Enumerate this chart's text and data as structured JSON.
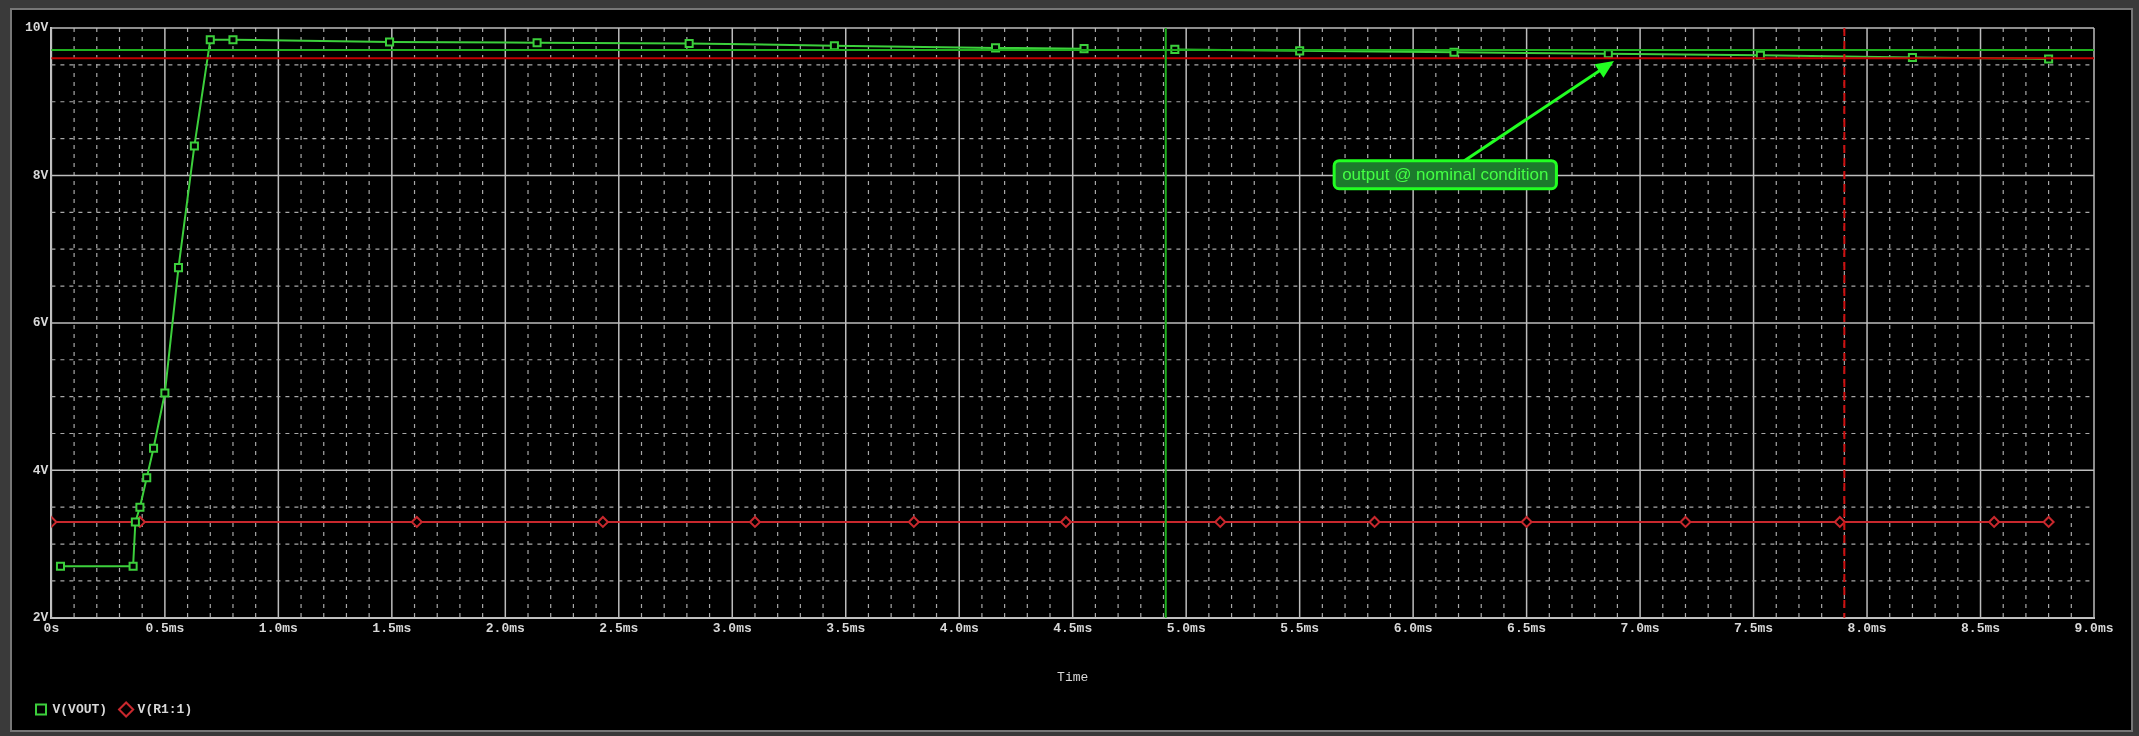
{
  "chart_data": {
    "type": "line",
    "xlabel": "Time",
    "legend": "bottom left",
    "grid": true,
    "line_style": "solid",
    "xlim": [
      0,
      9
    ],
    "ylim": [
      2,
      10
    ],
    "xticks": [
      {
        "value": 0,
        "label": "0s"
      },
      {
        "value": 0.1,
        "label": null
      },
      {
        "value": 0.2,
        "label": null
      },
      {
        "value": 0.3,
        "label": null
      },
      {
        "value": 0.4,
        "label": null
      },
      {
        "value": 0.5,
        "label": "0.5ms"
      },
      {
        "value": 0.6,
        "label": null
      },
      {
        "value": 0.7,
        "label": null
      },
      {
        "value": 0.8,
        "label": null
      },
      {
        "value": 0.9,
        "label": null
      },
      {
        "value": 1,
        "label": "1.0ms"
      },
      {
        "value": 1.1,
        "label": null
      },
      {
        "value": 1.2,
        "label": null
      },
      {
        "value": 1.3,
        "label": null
      },
      {
        "value": 1.4,
        "label": null
      },
      {
        "value": 1.5,
        "label": "1.5ms"
      },
      {
        "value": 1.6,
        "label": null
      },
      {
        "value": 1.7,
        "label": null
      },
      {
        "value": 1.8,
        "label": null
      },
      {
        "value": 1.9,
        "label": null
      },
      {
        "value": 2,
        "label": "2.0ms"
      },
      {
        "value": 2.1,
        "label": null
      },
      {
        "value": 2.2,
        "label": null
      },
      {
        "value": 2.3,
        "label": null
      },
      {
        "value": 2.4,
        "label": null
      },
      {
        "value": 2.5,
        "label": "2.5ms"
      },
      {
        "value": 2.6,
        "label": null
      },
      {
        "value": 2.7,
        "label": null
      },
      {
        "value": 2.8,
        "label": null
      },
      {
        "value": 2.9,
        "label": null
      },
      {
        "value": 3,
        "label": "3.0ms"
      },
      {
        "value": 3.1,
        "label": null
      },
      {
        "value": 3.2,
        "label": null
      },
      {
        "value": 3.3,
        "label": null
      },
      {
        "value": 3.4,
        "label": null
      },
      {
        "value": 3.5,
        "label": "3.5ms"
      },
      {
        "value": 3.6,
        "label": null
      },
      {
        "value": 3.7,
        "label": null
      },
      {
        "value": 3.8,
        "label": null
      },
      {
        "value": 3.9,
        "label": null
      },
      {
        "value": 4,
        "label": "4.0ms"
      },
      {
        "value": 4.1,
        "label": null
      },
      {
        "value": 4.2,
        "label": null
      },
      {
        "value": 4.3,
        "label": null
      },
      {
        "value": 4.4,
        "label": null
      },
      {
        "value": 4.5,
        "label": "4.5ms"
      },
      {
        "value": 4.6,
        "label": null
      },
      {
        "value": 4.7,
        "label": null
      },
      {
        "value": 4.8,
        "label": null
      },
      {
        "value": 4.9,
        "label": null
      },
      {
        "value": 5,
        "label": "5.0ms"
      },
      {
        "value": 5.1,
        "label": null
      },
      {
        "value": 5.2,
        "label": null
      },
      {
        "value": 5.3,
        "label": null
      },
      {
        "value": 5.4,
        "label": null
      },
      {
        "value": 5.5,
        "label": "5.5ms"
      },
      {
        "value": 5.6,
        "label": null
      },
      {
        "value": 5.7,
        "label": null
      },
      {
        "value": 5.8,
        "label": null
      },
      {
        "value": 5.9,
        "label": null
      },
      {
        "value": 6,
        "label": "6.0ms"
      },
      {
        "value": 6.1,
        "label": null
      },
      {
        "value": 6.2,
        "label": null
      },
      {
        "value": 6.3,
        "label": null
      },
      {
        "value": 6.4,
        "label": null
      },
      {
        "value": 6.5,
        "label": "6.5ms"
      },
      {
        "value": 6.6,
        "label": null
      },
      {
        "value": 6.7,
        "label": null
      },
      {
        "value": 6.8,
        "label": null
      },
      {
        "value": 6.9,
        "label": null
      },
      {
        "value": 7,
        "label": "7.0ms"
      },
      {
        "value": 7.1,
        "label": null
      },
      {
        "value": 7.2,
        "label": null
      },
      {
        "value": 7.3,
        "label": null
      },
      {
        "value": 7.4,
        "label": null
      },
      {
        "value": 7.5,
        "label": "7.5ms"
      },
      {
        "value": 7.6,
        "label": null
      },
      {
        "value": 7.7,
        "label": null
      },
      {
        "value": 7.8,
        "label": null
      },
      {
        "value": 7.9,
        "label": null
      },
      {
        "value": 8,
        "label": "8.0ms"
      },
      {
        "value": 8.1,
        "label": null
      },
      {
        "value": 8.2,
        "label": null
      },
      {
        "value": 8.3,
        "label": null
      },
      {
        "value": 8.4,
        "label": null
      },
      {
        "value": 8.5,
        "label": "8.5ms"
      },
      {
        "value": 8.6,
        "label": null
      },
      {
        "value": 8.7,
        "label": null
      },
      {
        "value": 8.8,
        "label": null
      },
      {
        "value": 8.9,
        "label": null
      },
      {
        "value": 9,
        "label": "9.0ms"
      }
    ],
    "yticks": [
      {
        "value": 2,
        "label": "2V"
      },
      {
        "value": 2.5,
        "label": null
      },
      {
        "value": 3,
        "label": null
      },
      {
        "value": 3.5,
        "label": null
      },
      {
        "value": 4,
        "label": "4V"
      },
      {
        "value": 4.5,
        "label": null
      },
      {
        "value": 5,
        "label": null
      },
      {
        "value": 5.5,
        "label": null
      },
      {
        "value": 6,
        "label": "6V"
      },
      {
        "value": 6.5,
        "label": null
      },
      {
        "value": 7,
        "label": null
      },
      {
        "value": 7.5,
        "label": null
      },
      {
        "value": 8,
        "label": "8V"
      },
      {
        "value": 8.5,
        "label": null
      },
      {
        "value": 9,
        "label": null
      },
      {
        "value": 9.5,
        "label": null
      },
      {
        "value": 10,
        "label": "10V"
      }
    ],
    "series": [
      {
        "name": "V(VOUT)",
        "color": "#3ccf3c",
        "marker": "square",
        "x": [
          0.04,
          0.36,
          0.37,
          0.39,
          0.42,
          0.45,
          0.5,
          0.56,
          0.63,
          0.7,
          0.8,
          1.49,
          2.14,
          2.81,
          3.45,
          4.16,
          4.55,
          4.83,
          4.95,
          5.5,
          6.18,
          6.86,
          7.53,
          8.2,
          8.8
        ],
        "values": [
          2.7,
          2.7,
          3.3,
          3.5,
          3.9,
          4.3,
          5.05,
          6.75,
          8.4,
          9.84,
          9.84,
          9.81,
          9.8,
          9.79,
          9.76,
          9.73,
          9.72,
          null,
          9.71,
          9.69,
          9.67,
          9.65,
          9.63,
          9.6,
          9.58
        ]
      },
      {
        "name": "V(R1:1)",
        "color": "#c8282d",
        "marker": "diamond",
        "x": [
          0,
          0.39,
          1.61,
          2.43,
          3.1,
          3.8,
          4.47,
          5.15,
          5.83,
          6.5,
          7.2,
          7.88,
          8.56,
          8.8
        ],
        "values": [
          3.3,
          3.3,
          3.3,
          3.3,
          3.3,
          3.3,
          3.3,
          3.3,
          3.3,
          3.3,
          3.3,
          3.3,
          3.3,
          3.3
        ]
      }
    ],
    "ref_lines": [
      {
        "axis": "y",
        "value": 9.7,
        "color": "#1fb01f"
      },
      {
        "axis": "y",
        "value": 9.59,
        "color": "#c00000"
      },
      {
        "axis": "x",
        "value": 4.91,
        "color": "#1fb01f"
      },
      {
        "axis": "x",
        "value": 7.9,
        "color": "#d01010",
        "line_style": "dashed"
      }
    ],
    "annotations": [
      "output @ nominal condition"
    ]
  }
}
